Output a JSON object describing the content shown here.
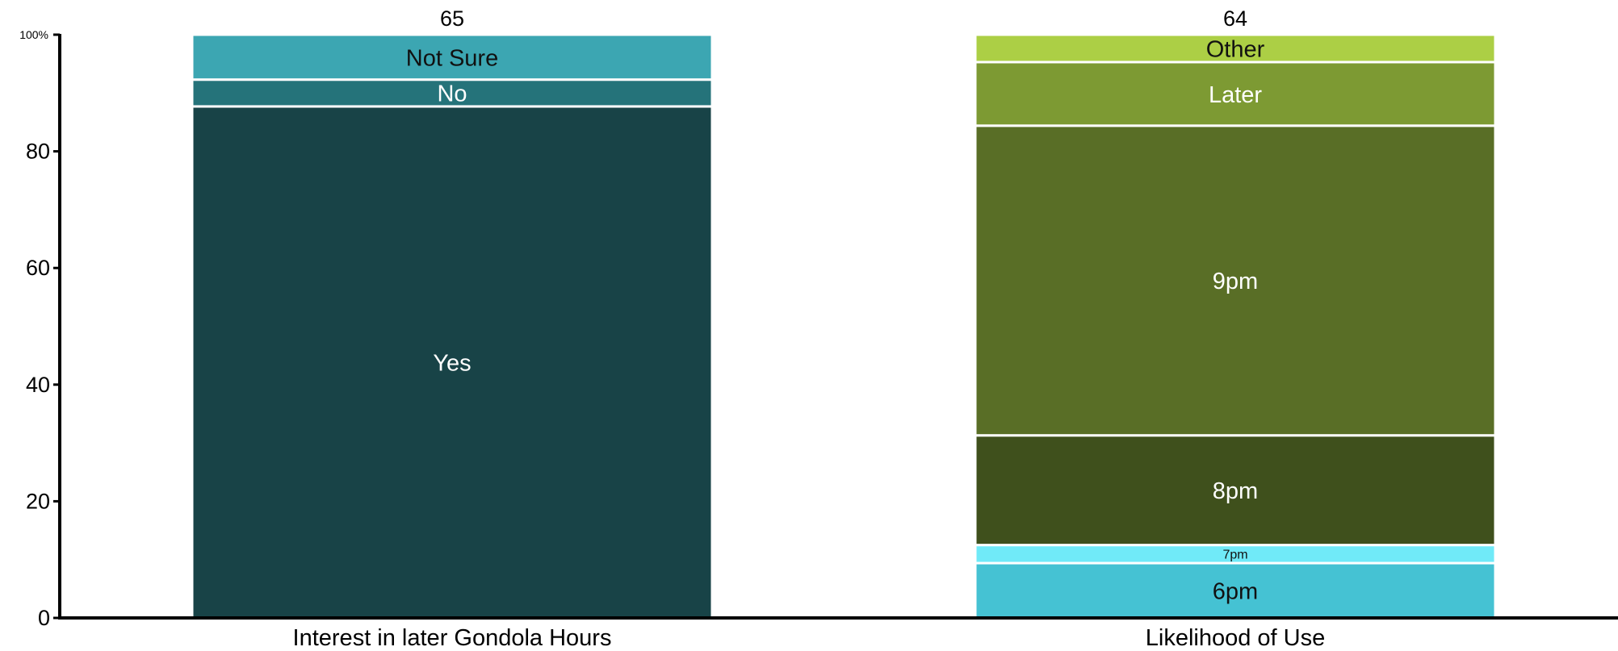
{
  "chart_data": {
    "type": "bar",
    "stacked": true,
    "percent": true,
    "categories": [
      "Interest in later Gondola Hours",
      "Likelihood of Use"
    ],
    "totals": [
      "65",
      "64"
    ],
    "ylim": [
      0,
      100
    ],
    "yticks": [
      {
        "value": 0,
        "label": "0"
      },
      {
        "value": 20,
        "label": "20"
      },
      {
        "value": 40,
        "label": "40"
      },
      {
        "value": 60,
        "label": "60"
      },
      {
        "value": 80,
        "label": "80"
      },
      {
        "value": 100,
        "label": "100%"
      }
    ],
    "grid": false,
    "legend": "none",
    "bars": [
      {
        "category": "Interest in later Gondola Hours",
        "segments": [
          {
            "label": "Yes",
            "value": 87.7,
            "color": "#184347",
            "text_color": "#ffffff"
          },
          {
            "label": "No",
            "value": 4.6,
            "color": "#25737a",
            "text_color": "#ffffff"
          },
          {
            "label": "Not Sure",
            "value": 7.7,
            "color": "#3ca6b2",
            "text_color": "#111111"
          }
        ]
      },
      {
        "category": "Likelihood of Use",
        "segments": [
          {
            "label": "6pm",
            "value": 9.4,
            "color": "#45c2d3",
            "text_color": "#111111"
          },
          {
            "label": "7pm",
            "value": 3.1,
            "color": "#70eaf8",
            "text_color": "#111111"
          },
          {
            "label": "8pm",
            "value": 18.8,
            "color": "#3f501c",
            "text_color": "#ffffff"
          },
          {
            "label": "9pm",
            "value": 53.1,
            "color": "#596e26",
            "text_color": "#ffffff"
          },
          {
            "label": "Later",
            "value": 10.9,
            "color": "#7d9a33",
            "text_color": "#ffffff"
          },
          {
            "label": "Other",
            "value": 4.7,
            "color": "#accf45",
            "text_color": "#111111"
          }
        ]
      }
    ]
  }
}
